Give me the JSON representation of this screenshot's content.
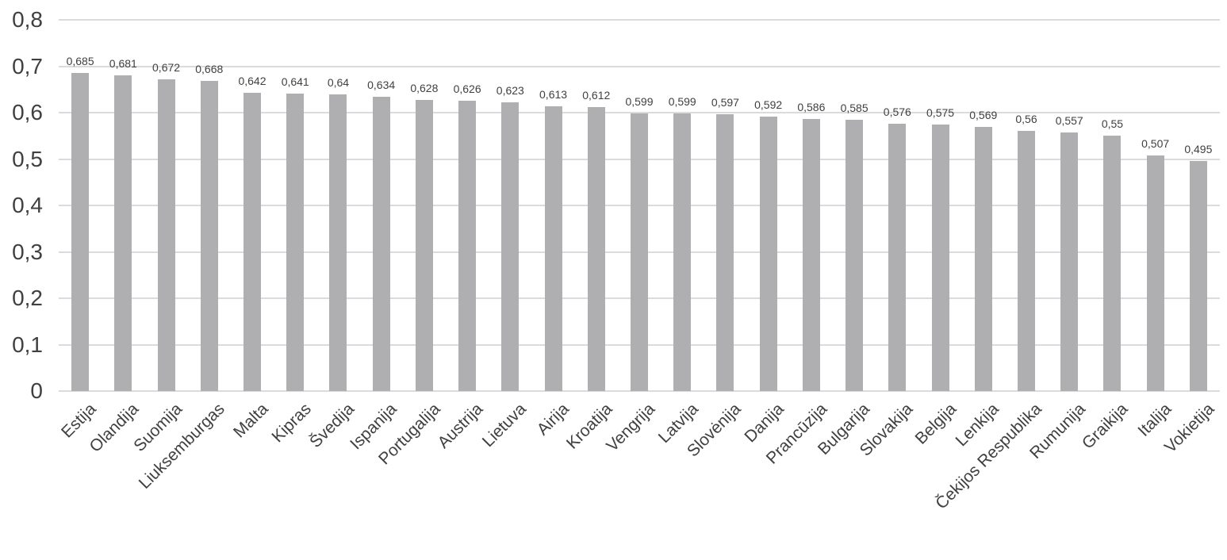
{
  "chart_data": {
    "type": "bar",
    "title": "",
    "xlabel": "",
    "ylabel": "",
    "categories": [
      "Estija",
      "Olandija",
      "Suomija",
      "Liuksemburgas",
      "Malta",
      "Kipras",
      "Švedija",
      "Ispanija",
      "Portugalija",
      "Austrija",
      "Lietuva",
      "Airija",
      "Kroatija",
      "Vengrija",
      "Latvija",
      "Slovėnija",
      "Danija",
      "Prancūzija",
      "Bulgarija",
      "Slovakija",
      "Belgija",
      "Lenkija",
      "Čekijos Respublika",
      "Rumunija",
      "Graikija",
      "Italija",
      "Vokietija"
    ],
    "values": [
      0.685,
      0.681,
      0.672,
      0.668,
      0.642,
      0.641,
      0.64,
      0.634,
      0.628,
      0.626,
      0.623,
      0.613,
      0.612,
      0.599,
      0.599,
      0.597,
      0.592,
      0.586,
      0.585,
      0.576,
      0.575,
      0.569,
      0.56,
      0.557,
      0.55,
      0.507,
      0.495
    ],
    "value_labels": [
      "0,685",
      "0,681",
      "0,672",
      "0,668",
      "0,642",
      "0,641",
      "0,64",
      "0,634",
      "0,628",
      "0,626",
      "0,623",
      "0,613",
      "0,612",
      "0,599",
      "0,599",
      "0,597",
      "0,592",
      "0,586",
      "0,585",
      "0,576",
      "0,575",
      "0,569",
      "0,56",
      "0,557",
      "0,55",
      "0,507",
      "0,495"
    ],
    "ylim": [
      0,
      0.8
    ],
    "yticks": [
      0,
      0.1,
      0.2,
      0.3,
      0.4,
      0.5,
      0.6,
      0.7,
      0.8
    ],
    "ytick_labels": [
      "0",
      "0,1",
      "0,2",
      "0,3",
      "0,4",
      "0,5",
      "0,6",
      "0,7",
      "0,8"
    ],
    "grid": true,
    "legend": false,
    "colors": {
      "bar": "#AFAFB1",
      "gridline": "#DBDBDB",
      "value_label": "#404040",
      "axis_label": "#404040",
      "background": "#FFFFFF"
    }
  }
}
